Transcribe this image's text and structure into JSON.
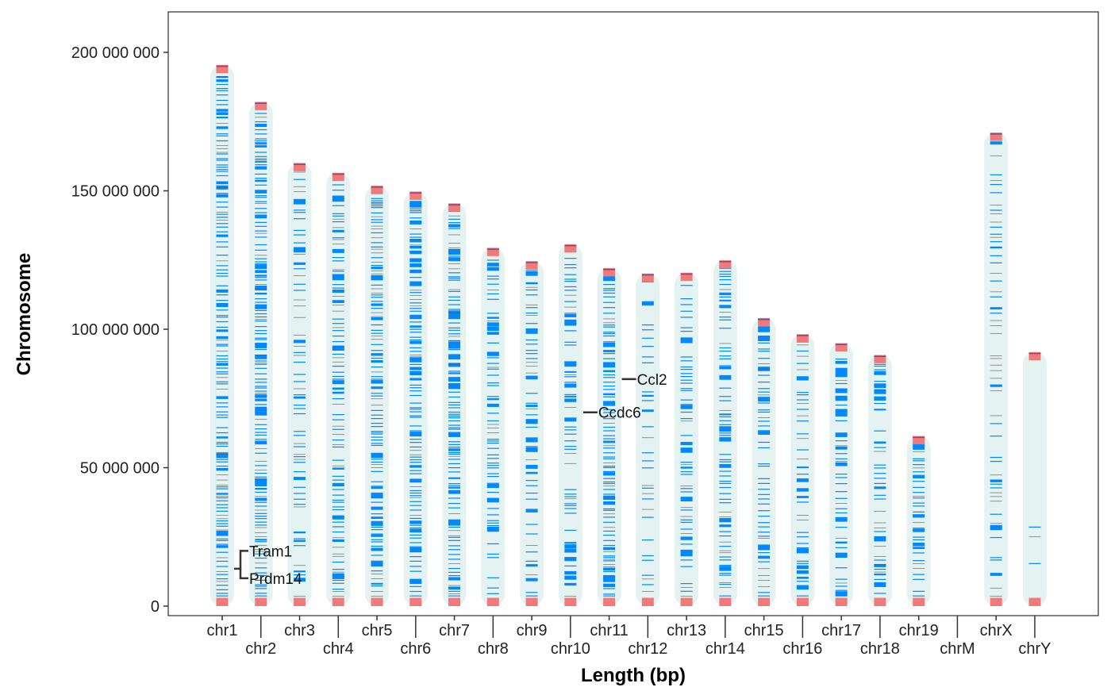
{
  "chart_data": {
    "type": "karyotype",
    "xlabel": "Length (bp)",
    "ylabel": "Chromosome",
    "ylim": [
      0,
      200000000
    ],
    "yticks": [
      0,
      50000000,
      100000000,
      150000000,
      200000000
    ],
    "ytick_labels": [
      "0",
      "50 000 000",
      "100 000 000",
      "150 000 000",
      "200 000 000"
    ],
    "categories": [
      "chr1",
      "chr2",
      "chr3",
      "chr4",
      "chr5",
      "chr6",
      "chr7",
      "chr8",
      "chr9",
      "chr10",
      "chr11",
      "chr12",
      "chr13",
      "chr14",
      "chr15",
      "chr16",
      "chr17",
      "chr18",
      "chr19",
      "chrM",
      "chrX",
      "chrY"
    ],
    "lengths": [
      195471971,
      182113224,
      160039680,
      156508116,
      151834684,
      149736546,
      145441459,
      129401213,
      124595110,
      130694993,
      122082543,
      120129022,
      120421639,
      124902244,
      104043685,
      98207768,
      94987271,
      90702639,
      61431566,
      16299,
      171031299,
      91744698
    ],
    "feature_density": [
      1,
      1,
      0.7,
      0.9,
      1,
      1,
      1,
      0.8,
      0.8,
      0.8,
      1,
      0.6,
      0.8,
      0.8,
      0.8,
      0.7,
      0.8,
      0.8,
      0.9,
      0,
      0.6,
      0.1
    ],
    "gene_labels": [
      {
        "name": "Tram1",
        "chromosome": "chr1",
        "position": 16500000
      },
      {
        "name": "Prdm14",
        "chromosome": "chr1",
        "position": 13500000
      },
      {
        "name": "Ccdc6",
        "chromosome": "chr10",
        "position": 70000000
      },
      {
        "name": "Ccl2",
        "chromosome": "chr11",
        "position": 82000000
      }
    ],
    "colors": {
      "background": "#e4f2f2",
      "feature": "#0088ff",
      "minor": "#555555",
      "cap": "#f07a7a",
      "cap_dark": "#7b4a80"
    },
    "grid": false
  }
}
